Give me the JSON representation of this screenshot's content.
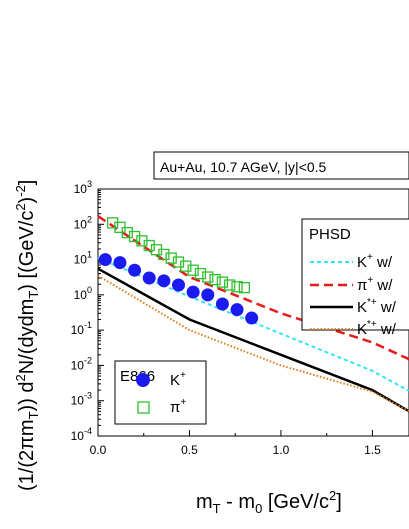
{
  "chart_data": {
    "type": "scatter",
    "title": "Au+Au, 10.7 AGeV, |y|<0.5",
    "xlabel": "m_T - m_0 [GeV/c^2]",
    "ylabel": "(1/(2πm_T)) d^2N/(dydm_T) [(GeV/c^2)^-2]",
    "x_scale": "linear",
    "y_scale": "log",
    "xlim": [
      0.0,
      1.7
    ],
    "ylim": [
      0.0001,
      1000
    ],
    "x_ticks": [
      "0.0",
      "0.5",
      "1.0",
      "1.5"
    ],
    "y_ticks": [
      "10^-4",
      "10^-3",
      "10^-2",
      "10^-1",
      "10^0",
      "10^1",
      "10^2",
      "10^3"
    ],
    "legend_model": {
      "title": "PHSD",
      "position": "top-right",
      "entries": [
        "K^+ w/",
        "π^+ w/",
        "K^*+ w/",
        "K^*+ w/"
      ]
    },
    "legend_data": {
      "title": "E866",
      "position": "bottom-left",
      "entries": [
        "K^+",
        "π^+"
      ]
    },
    "series": [
      {
        "name": "K^+",
        "kind": "markers-filled-circle",
        "color": "#1b1bf0",
        "x": [
          0.04,
          0.12,
          0.2,
          0.28,
          0.36,
          0.44,
          0.52,
          0.6,
          0.68,
          0.76,
          0.84
        ],
        "y": [
          10,
          8.2,
          5.0,
          3.0,
          2.5,
          1.9,
          1.2,
          1.0,
          0.55,
          0.38,
          0.22
        ]
      },
      {
        "name": "π^+",
        "kind": "markers-open-square",
        "color": "#2fbf2f",
        "x": [
          0.08,
          0.12,
          0.16,
          0.2,
          0.24,
          0.28,
          0.32,
          0.36,
          0.4,
          0.44,
          0.48,
          0.52,
          0.56,
          0.6,
          0.64,
          0.68,
          0.72,
          0.76,
          0.8
        ],
        "y": [
          110,
          82,
          58,
          45,
          34,
          25,
          19,
          14,
          11,
          8.5,
          6.5,
          5.0,
          4.0,
          3.2,
          2.7,
          2.3,
          1.9,
          1.7,
          1.6
        ]
      },
      {
        "name": "K^+ w/",
        "kind": "line-dashed",
        "color": "#33e6f2",
        "x": [
          0.0,
          0.5,
          1.0,
          1.5,
          1.7
        ],
        "y": [
          11,
          0.9,
          0.08,
          0.007,
          0.0019
        ]
      },
      {
        "name": "π^+ w/",
        "kind": "line-dashed",
        "color": "#e81b1b",
        "x": [
          0.0,
          0.5,
          1.0,
          1.5,
          1.7
        ],
        "y": [
          170,
          3.2,
          0.3,
          0.045,
          0.015
        ]
      },
      {
        "name": "K^*+ w/",
        "kind": "line-solid",
        "color": "#000000",
        "x": [
          0.0,
          0.5,
          1.0,
          1.5,
          1.7
        ],
        "y": [
          5.5,
          0.2,
          0.02,
          0.002,
          0.0005
        ]
      },
      {
        "name": "K^*+ w/",
        "kind": "line-dotted",
        "color": "#e07a16",
        "x": [
          0.0,
          0.5,
          1.0,
          1.5,
          1.7
        ],
        "y": [
          3.5,
          0.1,
          0.01,
          0.0018,
          0.0005
        ]
      }
    ]
  }
}
